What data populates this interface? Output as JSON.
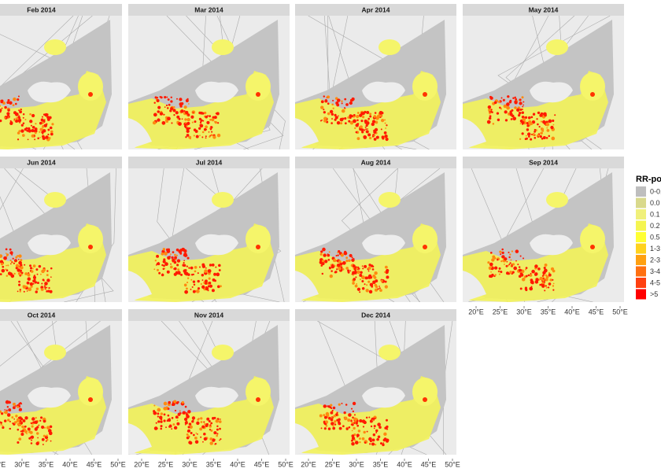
{
  "panels": [
    {
      "title": "Feb 2014"
    },
    {
      "title": "Mar 2014"
    },
    {
      "title": "Apr 2014"
    },
    {
      "title": "May 2014"
    },
    {
      "title": "Jun 2014"
    },
    {
      "title": "Jul 2014"
    },
    {
      "title": "Aug 2014"
    },
    {
      "title": "Sep 2014"
    },
    {
      "title": "Oct 2014"
    },
    {
      "title": "Nov 2014"
    },
    {
      "title": "Dec 2014"
    }
  ],
  "x_axis_labels": [
    "20°E",
    "25°E",
    "30°E",
    "35°E",
    "40°E",
    "45°E",
    "50°E"
  ],
  "legend": {
    "title": "RR-po",
    "labels": [
      "0-0.",
      "0.0",
      "0.1",
      "0.2",
      "0.5",
      "1-3",
      "2-3",
      "3-4",
      "4-5",
      ">5"
    ],
    "colors": [
      "#bebebe",
      "#d9d98c",
      "#f0f07a",
      "#f5f550",
      "#ffff33",
      "#ffd21e",
      "#ffa010",
      "#ff7010",
      "#ff4010",
      "#ff0000"
    ]
  }
}
